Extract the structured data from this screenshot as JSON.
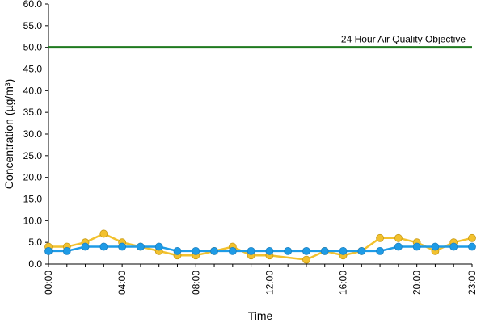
{
  "chart_data": {
    "type": "line",
    "xlabel": "Time",
    "ylabel": "Concentration (µg/m³)",
    "ylim": [
      0,
      60
    ],
    "yticks": [
      "0.0",
      "5.0",
      "10.0",
      "15.0",
      "20.0",
      "25.0",
      "30.0",
      "35.0",
      "40.0",
      "45.0",
      "50.0",
      "55.0",
      "60.0"
    ],
    "x": [
      "00:00",
      "01:00",
      "02:00",
      "03:00",
      "04:00",
      "05:00",
      "06:00",
      "07:00",
      "08:00",
      "09:00",
      "10:00",
      "11:00",
      "12:00",
      "13:00",
      "14:00",
      "15:00",
      "16:00",
      "17:00",
      "18:00",
      "19:00",
      "20:00",
      "21:00",
      "22:00",
      "23:00"
    ],
    "xtick_labels": [
      "00:00",
      "04:00",
      "08:00",
      "12:00",
      "16:00",
      "20:00",
      "23:00"
    ],
    "grid": false,
    "series": [
      {
        "color": "#f2c12e",
        "values": [
          4,
          4,
          5,
          7,
          5,
          4,
          3,
          2,
          2,
          3,
          4,
          2,
          2,
          null,
          1,
          3,
          2,
          3,
          6,
          6,
          5,
          3,
          5,
          6
        ]
      },
      {
        "color": "#1e9be6",
        "values": [
          3,
          3,
          4,
          4,
          4,
          4,
          4,
          3,
          3,
          3,
          3,
          3,
          3,
          3,
          3,
          3,
          3,
          3,
          3,
          4,
          4,
          4,
          4,
          4
        ]
      }
    ],
    "reference_line": {
      "label": "24 Hour Air Quality Objective",
      "value": 50,
      "color": "#1f7a1f"
    }
  }
}
